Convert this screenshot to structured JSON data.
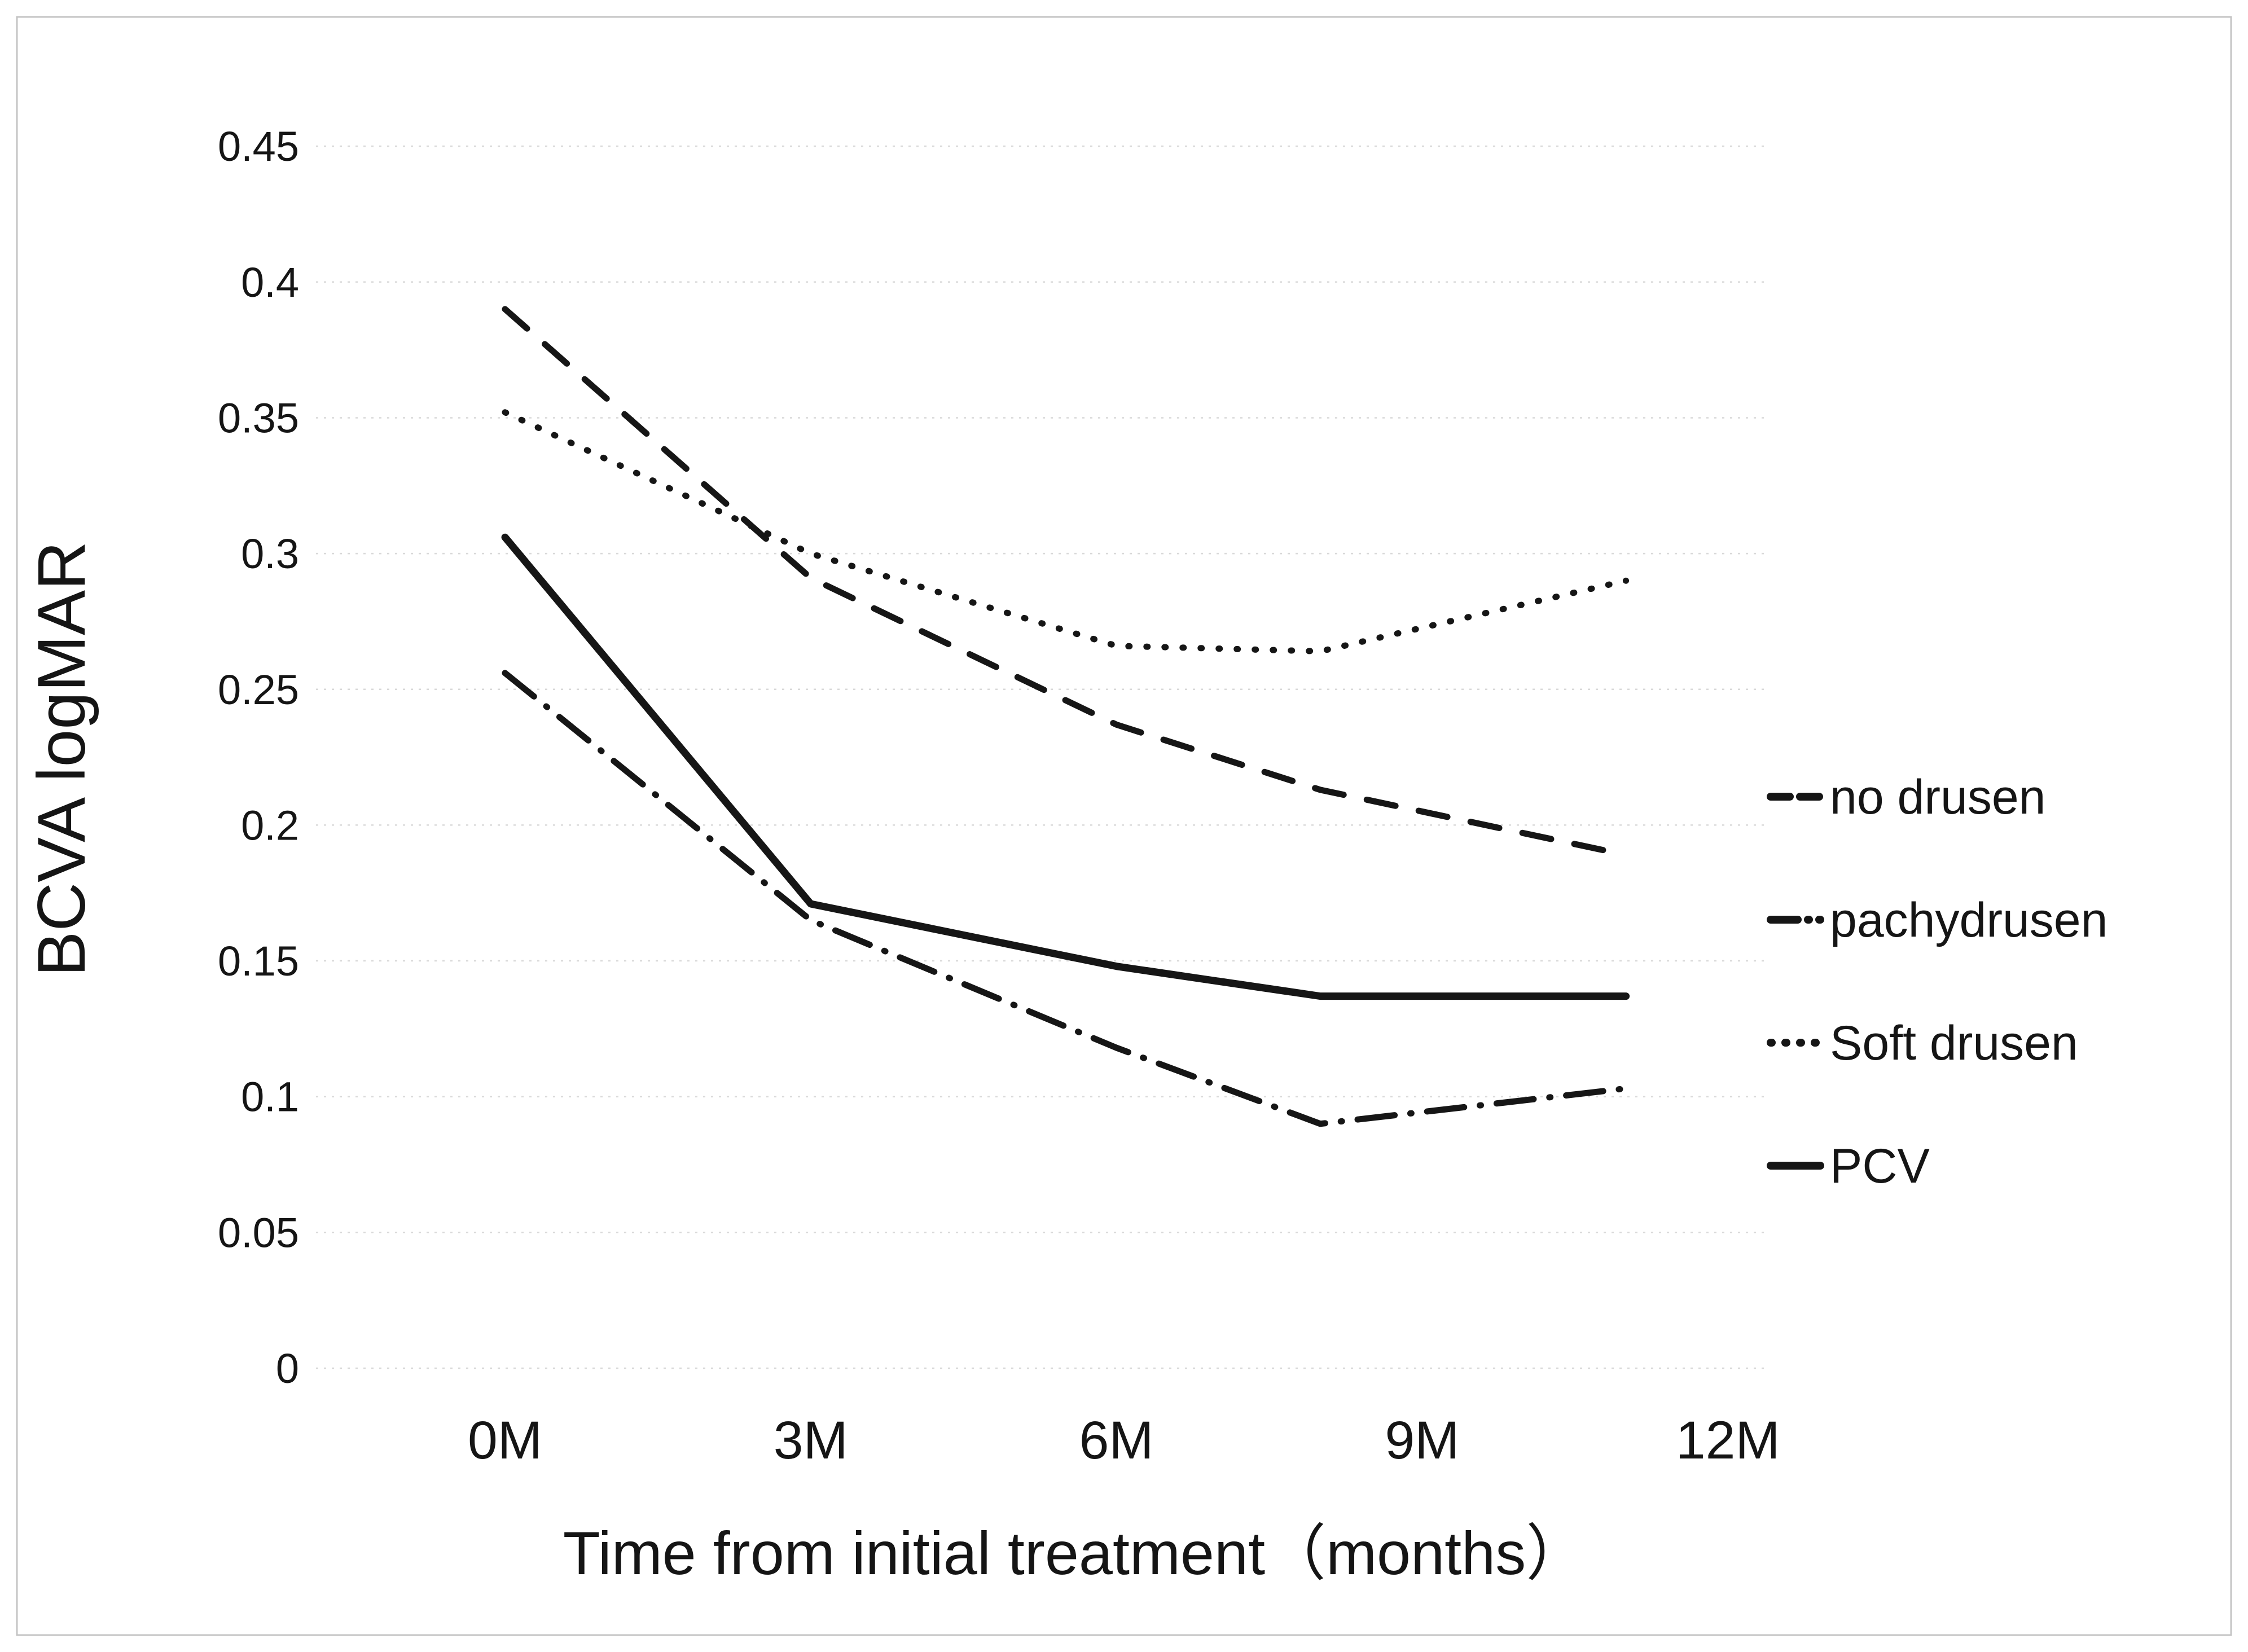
{
  "figure_title": "",
  "chart_data": {
    "type": "line",
    "title": "",
    "x": [
      0,
      3,
      6,
      8,
      11
    ],
    "x_axis": {
      "label": "Time from initial treatment（months）",
      "range": [
        0,
        12.4
      ],
      "ticks": [
        0,
        3,
        6,
        9,
        12
      ],
      "tick_labels": [
        "0M",
        "3M",
        "6M",
        "9M",
        "12M"
      ]
    },
    "y_axis": {
      "label": "BCVA logMAR",
      "range": [
        0,
        0.45
      ],
      "tick_step": 0.05,
      "tick_labels": [
        "0",
        "0.05",
        "0.1",
        "0.15",
        "0.2",
        "0.25",
        "0.3",
        "0.35",
        "0.4",
        "0.45"
      ],
      "grid": true
    },
    "legend": {
      "position": "right"
    },
    "series": [
      {
        "name": "no drusen",
        "style": "dashed",
        "values": [
          0.39,
          0.291,
          0.237,
          0.213,
          0.189
        ]
      },
      {
        "name": "pachydrusen",
        "style": "dashdot",
        "values": [
          0.256,
          0.165,
          0.118,
          0.09,
          0.103
        ]
      },
      {
        "name": "Soft drusen",
        "style": "dotted",
        "values": [
          0.352,
          0.3,
          0.266,
          0.264,
          0.29
        ]
      },
      {
        "name": "PCV",
        "style": "solid",
        "values": [
          0.306,
          0.171,
          0.148,
          0.137,
          0.137
        ]
      }
    ]
  },
  "colors": {
    "line": "#161616",
    "grid": "#d9d9d9",
    "text": "#151515",
    "border": "#c4c4c4",
    "background": "#ffffff"
  }
}
